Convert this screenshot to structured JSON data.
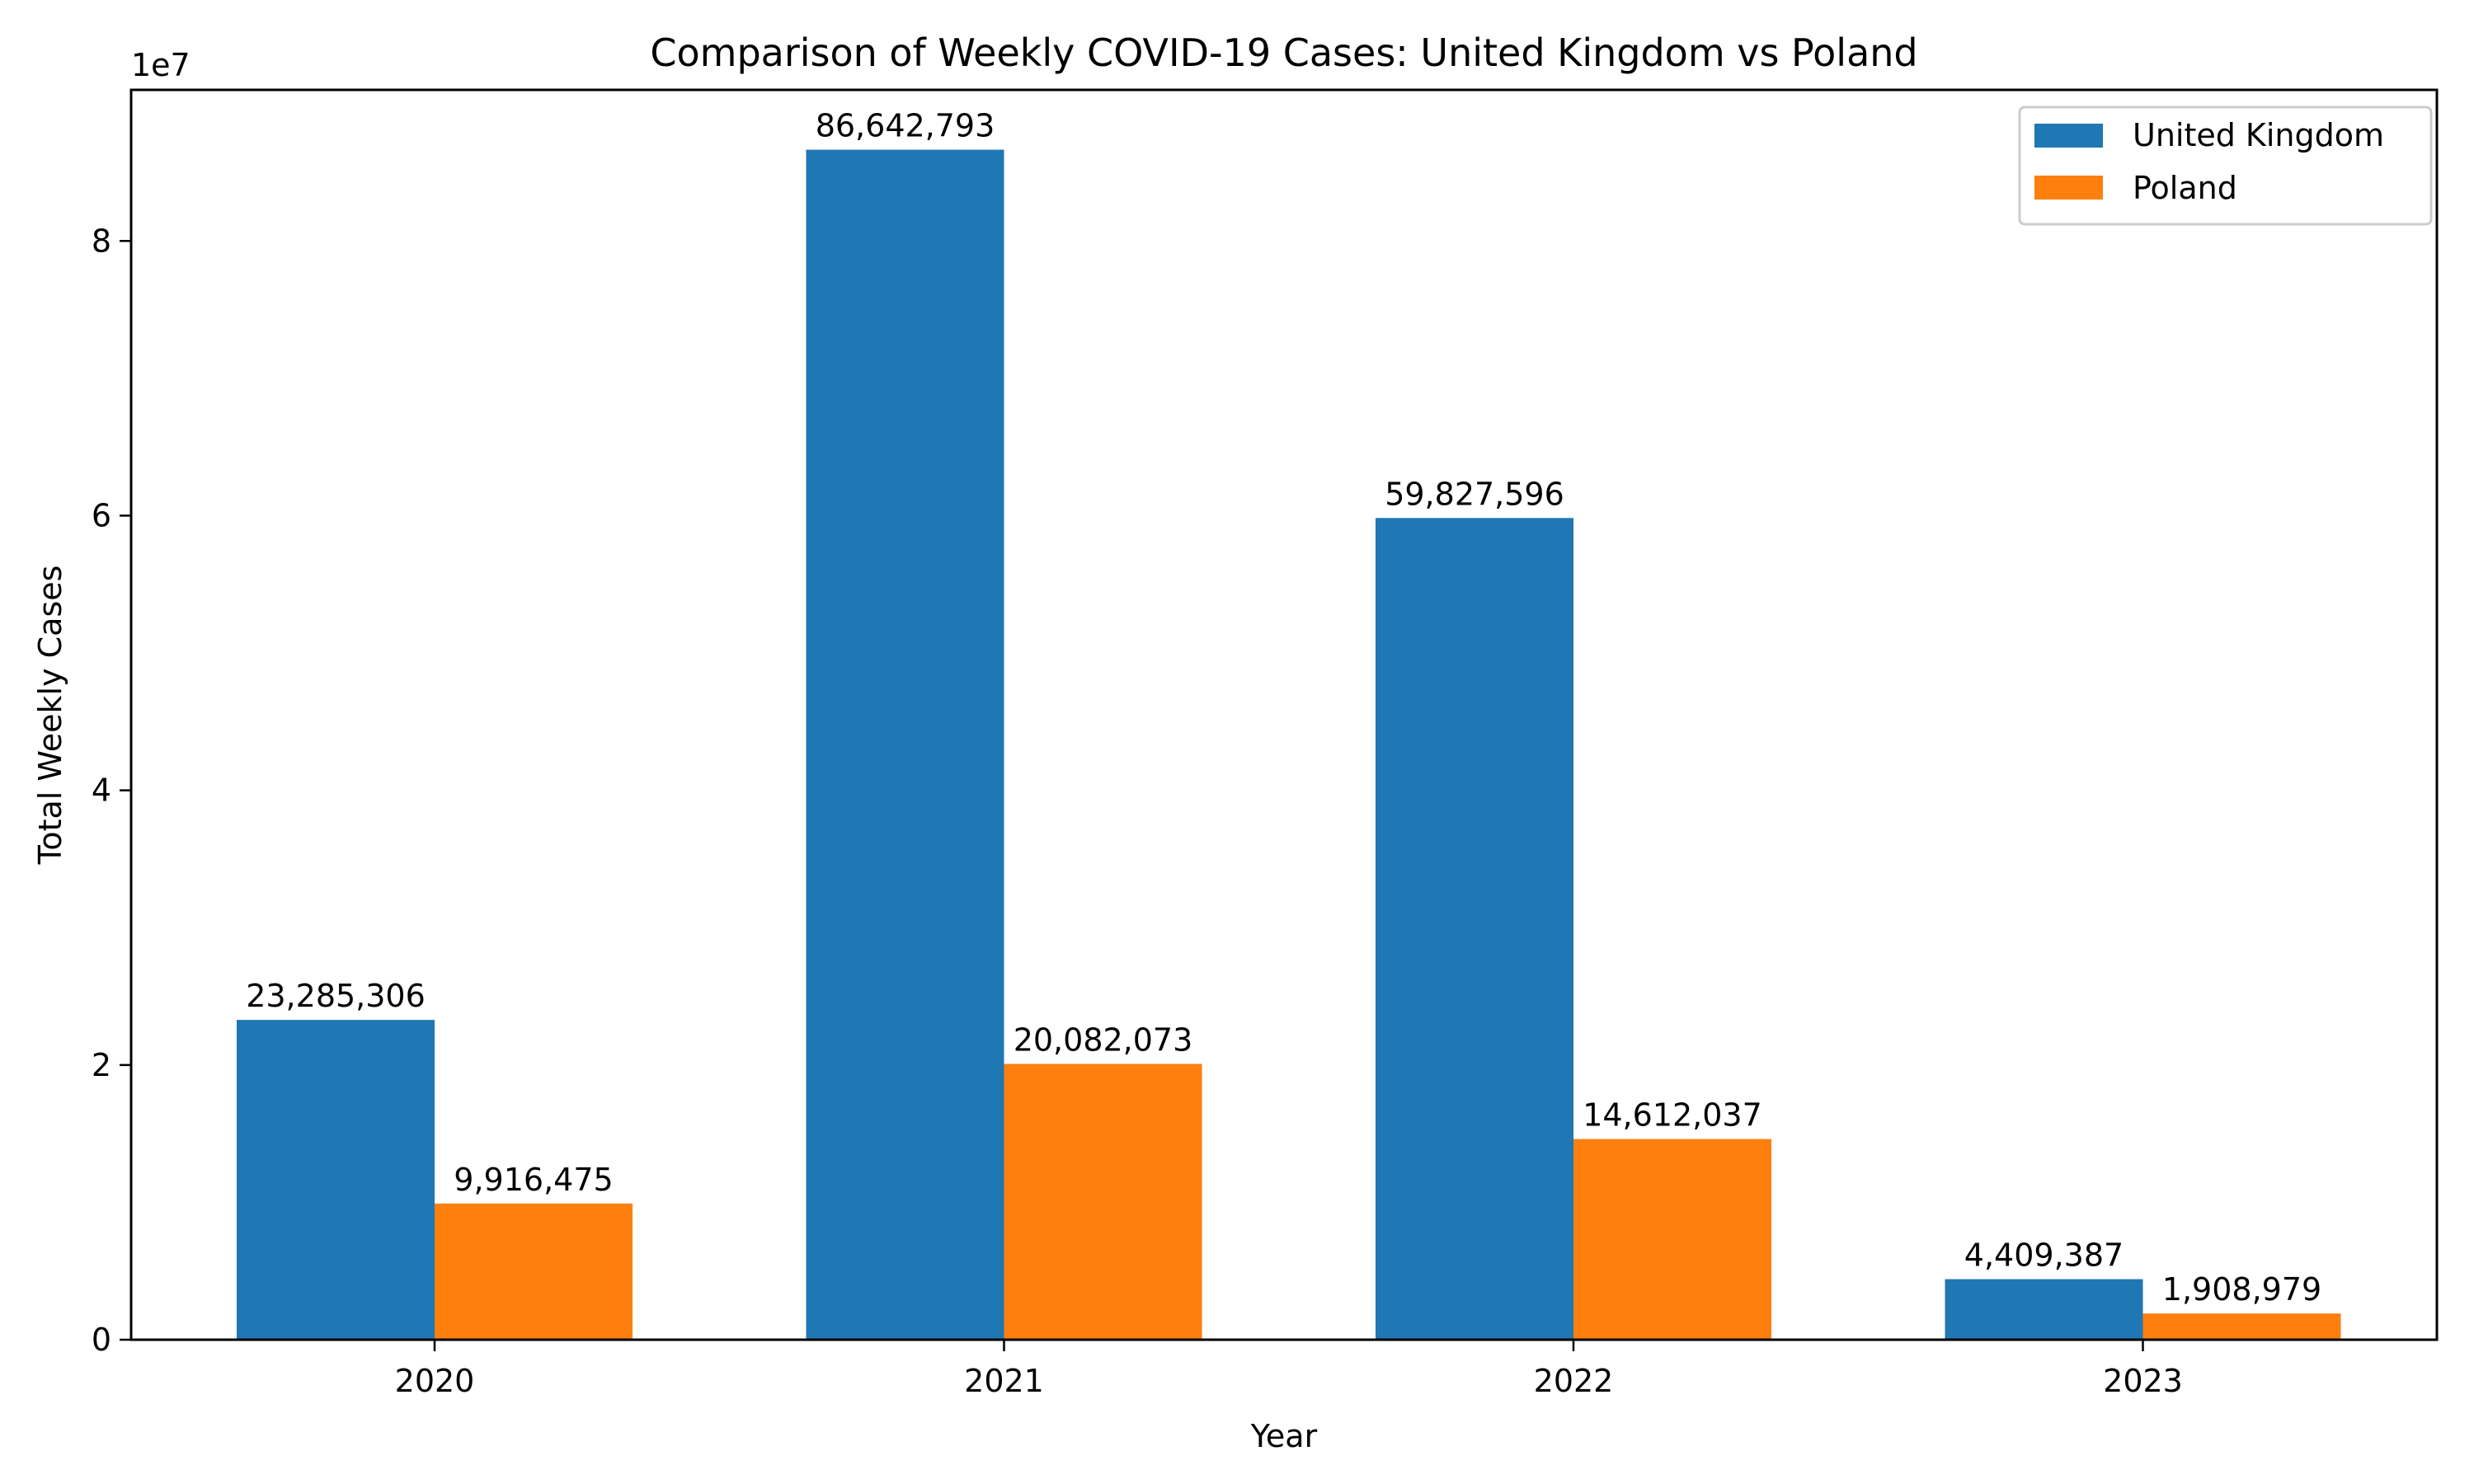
{
  "chart_data": {
    "type": "bar",
    "title": "Comparison of Weekly COVID-19 Cases: United Kingdom vs Poland",
    "xlabel": "Year",
    "ylabel": "Total Weekly Cases",
    "y_offset_label": "1e7",
    "categories": [
      "2020",
      "2021",
      "2022",
      "2023"
    ],
    "series": [
      {
        "name": "United Kingdom",
        "color": "#1f77b4",
        "values": [
          23285306,
          86642793,
          59827596,
          4409387
        ],
        "labels": [
          "23,285,306",
          "86,642,793",
          "59,827,596",
          "4,409,387"
        ]
      },
      {
        "name": "Poland",
        "color": "#ff7f0e",
        "values": [
          9916475,
          20082073,
          14612037,
          1908979
        ],
        "labels": [
          "9,916,475",
          "20,082,073",
          "14,612,037",
          "1,908,979"
        ]
      }
    ],
    "yticks": [
      0,
      20000000,
      40000000,
      60000000,
      80000000
    ],
    "ytick_labels": [
      "0",
      "2",
      "4",
      "6",
      "8"
    ],
    "ylim": [
      0,
      91000000
    ],
    "grid": false,
    "legend_position": "top-right"
  }
}
